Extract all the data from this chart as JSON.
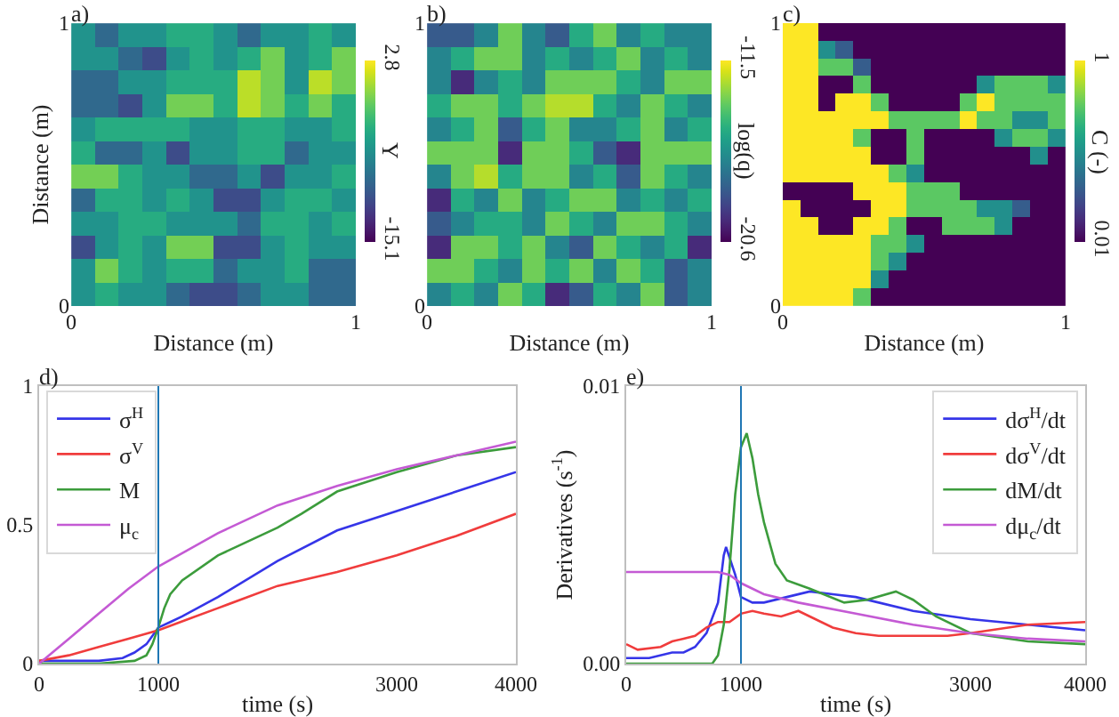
{
  "chart_data": [
    {
      "type": "heatmap",
      "title": "a)",
      "xlabel": "Distance (m)",
      "ylabel": "Distance (m)",
      "clabel": "Y",
      "x": [
        0.042,
        0.125,
        0.208,
        0.292,
        0.375,
        0.458,
        0.542,
        0.625,
        0.708,
        0.792,
        0.875,
        0.958
      ],
      "y": [
        0.958,
        0.875,
        0.792,
        0.708,
        0.625,
        0.542,
        0.458,
        0.375,
        0.292,
        0.208,
        0.125,
        0.042
      ],
      "xlim": [
        0,
        1
      ],
      "ylim": [
        0,
        1
      ],
      "xticks": [
        0,
        1
      ],
      "yticks": [
        0,
        1
      ],
      "clim": [
        -15.1,
        2.8
      ],
      "cticks": [
        -15.1,
        2.8
      ],
      "cells": [
        [
          -6,
          -9,
          -6,
          -6,
          -4,
          -4,
          -6,
          -9,
          -6,
          -6,
          -4,
          -6
        ],
        [
          -6,
          -6,
          -9,
          -11,
          -6,
          -4,
          -6,
          -4,
          -1,
          -6,
          -4,
          -1
        ],
        [
          -9,
          -9,
          -6,
          -6,
          -4,
          -4,
          -4,
          1,
          -1,
          -6,
          1,
          -1
        ],
        [
          -9,
          -9,
          -11,
          -6,
          -1,
          -1,
          -4,
          1,
          -1,
          -4,
          -1,
          -4
        ],
        [
          -6,
          -4,
          -4,
          -4,
          -4,
          -6,
          -6,
          -4,
          -4,
          -6,
          -6,
          -4
        ],
        [
          -4,
          -9,
          -9,
          -6,
          -11,
          -6,
          -6,
          -4,
          -4,
          -9,
          -6,
          -6
        ],
        [
          -1,
          -1,
          -4,
          -6,
          -6,
          -9,
          -9,
          -6,
          -11,
          -6,
          -6,
          -4
        ],
        [
          -9,
          -4,
          -4,
          -6,
          -4,
          -6,
          -11,
          -11,
          -6,
          -4,
          -4,
          -6
        ],
        [
          -6,
          -6,
          -4,
          -4,
          -6,
          -6,
          -6,
          -9,
          -4,
          -4,
          -6,
          -4
        ],
        [
          -11,
          -6,
          -4,
          -6,
          -1,
          -1,
          -11,
          -11,
          -6,
          -4,
          -6,
          -6
        ],
        [
          -6,
          -1,
          -4,
          -6,
          -4,
          -4,
          -9,
          -6,
          -6,
          -4,
          -9,
          -9
        ],
        [
          -6,
          -4,
          -6,
          -6,
          -9,
          -11,
          -11,
          -9,
          -6,
          -6,
          -9,
          -9
        ]
      ]
    },
    {
      "type": "heatmap",
      "title": "b)",
      "xlabel": "Distance (m)",
      "clabel": "log(q)",
      "x": [
        0.042,
        0.125,
        0.208,
        0.292,
        0.375,
        0.458,
        0.542,
        0.625,
        0.708,
        0.792,
        0.875,
        0.958
      ],
      "y": [
        0.958,
        0.875,
        0.792,
        0.708,
        0.625,
        0.542,
        0.458,
        0.375,
        0.292,
        0.208,
        0.125,
        0.042
      ],
      "xlim": [
        0,
        1
      ],
      "ylim": [
        0,
        1
      ],
      "xticks": [
        0,
        1
      ],
      "yticks": [
        0,
        1
      ],
      "clim": [
        -20.6,
        -11.5
      ],
      "cticks": [
        -20.6,
        -11.5
      ],
      "cells": [
        [
          -18,
          -18,
          -16.5,
          -13.5,
          -16.5,
          -18,
          -15,
          -13.5,
          -16.5,
          -15,
          -16.5,
          -16.5
        ],
        [
          -16.5,
          -15,
          -13.5,
          -13.5,
          -16.5,
          -15,
          -16.5,
          -15,
          -13.5,
          -16.5,
          -15,
          -16.5
        ],
        [
          -16.5,
          -19.5,
          -16.5,
          -15,
          -16.5,
          -13.5,
          -13.5,
          -13.5,
          -15,
          -16.5,
          -13.5,
          -13.5
        ],
        [
          -15,
          -13.5,
          -13.5,
          -15,
          -13.5,
          -12.5,
          -12.5,
          -15,
          -16.5,
          -13.5,
          -15,
          -16.5
        ],
        [
          -16.5,
          -15,
          -13.5,
          -18,
          -15,
          -13.5,
          -16.5,
          -16.5,
          -15,
          -13.5,
          -16.5,
          -15
        ],
        [
          -13.5,
          -13.5,
          -13.5,
          -19.5,
          -13.5,
          -13.5,
          -15,
          -18,
          -19.5,
          -13.5,
          -13.5,
          -13.5
        ],
        [
          -16.5,
          -13.5,
          -12.5,
          -15,
          -13.5,
          -13.5,
          -16.5,
          -15,
          -18,
          -13.5,
          -15,
          -16.5
        ],
        [
          -19.5,
          -15,
          -16.5,
          -13.5,
          -16.5,
          -15,
          -13.5,
          -13.5,
          -16.5,
          -15,
          -16.5,
          -15
        ],
        [
          -18,
          -16.5,
          -15,
          -15,
          -16.5,
          -13.5,
          -15,
          -16.5,
          -13.5,
          -13.5,
          -15,
          -16.5
        ],
        [
          -19.5,
          -13.5,
          -13.5,
          -15,
          -13.5,
          -16.5,
          -18,
          -13.5,
          -15,
          -16.5,
          -15,
          -19.5
        ],
        [
          -13.5,
          -13.5,
          -15,
          -16.5,
          -13.5,
          -15,
          -13.5,
          -16.5,
          -13.5,
          -15,
          -18,
          -16.5
        ],
        [
          -16.5,
          -15,
          -16.5,
          -13.5,
          -15,
          -19.5,
          -18,
          -15,
          -16.5,
          -13.5,
          -18,
          -16.5
        ]
      ]
    },
    {
      "type": "heatmap",
      "title": "c)",
      "xlabel": "Distance (m)",
      "clabel": "C (-)",
      "x": [
        0.031,
        0.094,
        0.156,
        0.219,
        0.281,
        0.344,
        0.406,
        0.469,
        0.531,
        0.594,
        0.656,
        0.719,
        0.781,
        0.844,
        0.906,
        0.969
      ],
      "y": [
        0.969,
        0.906,
        0.844,
        0.781,
        0.719,
        0.656,
        0.594,
        0.531,
        0.469,
        0.406,
        0.344,
        0.281,
        0.219,
        0.156,
        0.094,
        0.031
      ],
      "xlim": [
        0,
        1
      ],
      "ylim": [
        0,
        1
      ],
      "xticks": [
        0,
        1
      ],
      "yticks": [
        0,
        1
      ],
      "clim": [
        0.01,
        1
      ],
      "cticks": [
        0.01,
        1
      ],
      "cells": [
        [
          1,
          1,
          0.01,
          0.01,
          0.01,
          0.01,
          0.01,
          0.01,
          0.01,
          0.01,
          0.01,
          0.01,
          0.01,
          0.01,
          0.01,
          0.01
        ],
        [
          1,
          1,
          0.5,
          0.3,
          0.01,
          0.01,
          0.01,
          0.01,
          0.01,
          0.01,
          0.01,
          0.01,
          0.01,
          0.01,
          0.01,
          0.01
        ],
        [
          1,
          1,
          0.75,
          0.75,
          0.3,
          0.01,
          0.01,
          0.01,
          0.01,
          0.01,
          0.01,
          0.01,
          0.01,
          0.01,
          0.01,
          0.01
        ],
        [
          1,
          1,
          0.01,
          0.01,
          0.75,
          0.01,
          0.01,
          0.01,
          0.01,
          0.01,
          0.01,
          0.5,
          0.75,
          0.75,
          0.75,
          0.5
        ],
        [
          1,
          1,
          0.01,
          1,
          1,
          0.75,
          0.01,
          0.01,
          0.01,
          0.01,
          0.75,
          1,
          0.75,
          0.75,
          0.75,
          0.75
        ],
        [
          1,
          1,
          1,
          1,
          1,
          1,
          0.75,
          0.75,
          0.75,
          0.75,
          1,
          0.75,
          0.75,
          0.5,
          0.5,
          0.75
        ],
        [
          1,
          1,
          1,
          1,
          0.75,
          0.01,
          0.01,
          0.75,
          0.01,
          0.01,
          0.01,
          0.01,
          0.5,
          0.75,
          0.75,
          0.5
        ],
        [
          1,
          1,
          1,
          1,
          1,
          0.01,
          0.01,
          0.75,
          0.01,
          0.01,
          0.01,
          0.01,
          0.01,
          0.01,
          0.5,
          0.01
        ],
        [
          1,
          1,
          1,
          1,
          1,
          1,
          0.75,
          0.5,
          0.01,
          0.01,
          0.01,
          0.01,
          0.01,
          0.01,
          0.01,
          0.01
        ],
        [
          0.01,
          0.01,
          0.01,
          0.01,
          1,
          1,
          1,
          0.75,
          0.75,
          0.75,
          0.01,
          0.01,
          0.01,
          0.01,
          0.01,
          0.01
        ],
        [
          1,
          0.01,
          0.01,
          0.01,
          0.01,
          1,
          1,
          0.75,
          0.75,
          0.75,
          0.75,
          0.5,
          0.5,
          0.3,
          0.01,
          0.01
        ],
        [
          1,
          1,
          0.01,
          0.01,
          1,
          1,
          0.75,
          0.01,
          0.01,
          0.75,
          0.75,
          0.75,
          0.5,
          0.01,
          0.01,
          0.01
        ],
        [
          1,
          1,
          1,
          1,
          1,
          0.75,
          0.75,
          0.5,
          0.01,
          0.01,
          0.01,
          0.01,
          0.01,
          0.01,
          0.01,
          0.01
        ],
        [
          1,
          1,
          1,
          1,
          1,
          0.75,
          0.5,
          0.01,
          0.01,
          0.01,
          0.01,
          0.01,
          0.01,
          0.01,
          0.01,
          0.01
        ],
        [
          1,
          1,
          1,
          1,
          1,
          0.5,
          0.01,
          0.01,
          0.01,
          0.01,
          0.01,
          0.01,
          0.01,
          0.01,
          0.01,
          0.01
        ],
        [
          1,
          1,
          1,
          1,
          0.75,
          0.01,
          0.01,
          0.01,
          0.01,
          0.01,
          0.01,
          0.01,
          0.01,
          0.01,
          0.01,
          0.01
        ]
      ]
    },
    {
      "type": "line",
      "title": "d)",
      "xlabel": "time (s)",
      "xlim": [
        0,
        4000
      ],
      "ylim": [
        0,
        1
      ],
      "xticks": [
        0,
        1000,
        3000,
        4000
      ],
      "yticks": [
        0,
        0.5,
        1
      ],
      "legend": "top left",
      "ref_lines": [
        {
          "axis": "x",
          "value": 1000,
          "color": "#1f77b4"
        }
      ],
      "series": [
        {
          "name": "σ$^{H}$",
          "color": "#3535e8",
          "x": [
            0,
            250,
            500,
            700,
            800,
            900,
            1000,
            1100,
            1200,
            1500,
            2000,
            2500,
            3000,
            3500,
            4000
          ],
          "values": [
            0.01,
            0.01,
            0.01,
            0.02,
            0.04,
            0.07,
            0.13,
            0.15,
            0.17,
            0.24,
            0.37,
            0.48,
            0.55,
            0.62,
            0.69
          ]
        },
        {
          "name": "σ$^{V}$",
          "color": "#f03c3c",
          "x": [
            0,
            250,
            500,
            750,
            1000,
            1250,
            1500,
            2000,
            2500,
            3000,
            3500,
            4000
          ],
          "values": [
            0.01,
            0.03,
            0.06,
            0.09,
            0.12,
            0.16,
            0.2,
            0.28,
            0.33,
            0.39,
            0.46,
            0.54
          ]
        },
        {
          "name": "M",
          "color": "#3c9c3c",
          "x": [
            0,
            500,
            800,
            900,
            950,
            1000,
            1050,
            1100,
            1200,
            1500,
            2000,
            2200,
            2500,
            3000,
            3500,
            4000
          ],
          "values": [
            0,
            0,
            0.01,
            0.03,
            0.07,
            0.13,
            0.2,
            0.25,
            0.3,
            0.39,
            0.49,
            0.54,
            0.62,
            0.69,
            0.75,
            0.78
          ]
        },
        {
          "name": "μ$_{c}$",
          "color": "#c45ad4",
          "x": [
            0,
            250,
            500,
            750,
            1000,
            1250,
            1500,
            2000,
            2500,
            3000,
            3500,
            4000
          ],
          "values": [
            0,
            0.09,
            0.18,
            0.27,
            0.35,
            0.41,
            0.47,
            0.57,
            0.64,
            0.7,
            0.75,
            0.8
          ]
        }
      ]
    },
    {
      "type": "line",
      "title": "e)",
      "xlabel": "time (s)",
      "ylabel": "Derivatives (s$^{-1}$)",
      "xlim": [
        0,
        4000
      ],
      "ylim": [
        0,
        0.01
      ],
      "xticks": [
        0,
        1000,
        3000,
        4000
      ],
      "yticks": [
        {
          "value": 0,
          "label": "0.00"
        },
        {
          "value": 0.01,
          "label": "0.01"
        }
      ],
      "legend": "top right",
      "ref_lines": [
        {
          "axis": "x",
          "value": 1000,
          "color": "#1f77b4"
        }
      ],
      "series": [
        {
          "name": "dσ$^{H}$/dt",
          "color": "#3535e8",
          "x": [
            0,
            200,
            400,
            500,
            600,
            700,
            800,
            850,
            870,
            950,
            1000,
            1100,
            1200,
            1400,
            1600,
            1800,
            2000,
            2500,
            3000,
            3500,
            4000
          ],
          "values": [
            0.0002,
            0.0002,
            0.0004,
            0.0004,
            0.0006,
            0.0011,
            0.0022,
            0.0039,
            0.0042,
            0.0032,
            0.0024,
            0.0022,
            0.0022,
            0.0024,
            0.0026,
            0.0025,
            0.0024,
            0.0019,
            0.0016,
            0.0014,
            0.0012
          ]
        },
        {
          "name": "dσ$^{V}$/dt",
          "color": "#f03c3c",
          "x": [
            0,
            100,
            300,
            400,
            500,
            600,
            700,
            800,
            900,
            1000,
            1100,
            1200,
            1350,
            1500,
            1600,
            1800,
            2000,
            2200,
            2500,
            2800,
            3000,
            3500,
            4000
          ],
          "values": [
            0.0007,
            0.0005,
            0.0006,
            0.0008,
            0.0009,
            0.001,
            0.0013,
            0.0015,
            0.0015,
            0.0018,
            0.0019,
            0.0018,
            0.0017,
            0.0019,
            0.0017,
            0.0013,
            0.0011,
            0.001,
            0.001,
            0.001,
            0.0011,
            0.0014,
            0.0015
          ]
        },
        {
          "name": "dM/dt",
          "color": "#3c9c3c",
          "x": [
            0,
            750,
            800,
            850,
            900,
            950,
            1000,
            1050,
            1100,
            1150,
            1200,
            1300,
            1400,
            1600,
            1900,
            2100,
            2350,
            2500,
            2700,
            3000,
            3500,
            4000
          ],
          "values": [
            0,
            0,
            0.0003,
            0.0014,
            0.0034,
            0.0061,
            0.0078,
            0.0083,
            0.0074,
            0.0061,
            0.0051,
            0.0036,
            0.003,
            0.0027,
            0.0022,
            0.0023,
            0.0026,
            0.0023,
            0.0017,
            0.0011,
            0.0008,
            0.0007
          ]
        },
        {
          "name": "dμ$_{c}$/dt",
          "color": "#c45ad4",
          "x": [
            0,
            800,
            900,
            1000,
            1200,
            1500,
            2000,
            2500,
            3000,
            3500,
            4000
          ],
          "values": [
            0.0033,
            0.0033,
            0.0032,
            0.0029,
            0.0025,
            0.0022,
            0.0018,
            0.0014,
            0.0011,
            0.0009,
            0.0008
          ]
        }
      ]
    }
  ]
}
